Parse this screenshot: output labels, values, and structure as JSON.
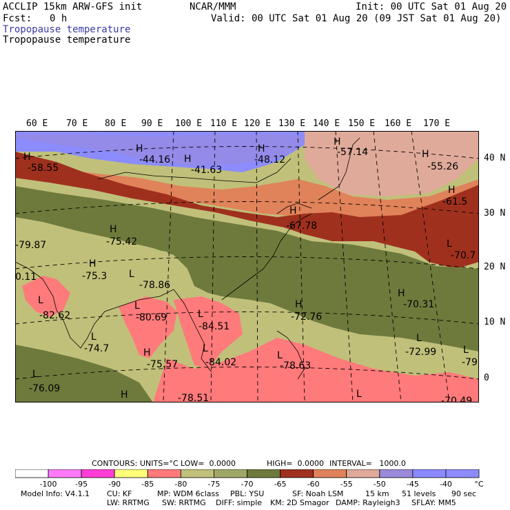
{
  "header": {
    "model": "ACCLIP 15km ARW-GFS init",
    "org": "NCAR/MMM",
    "init": "Init: 00 UTC Sat 01 Aug 20",
    "fcst_label": "Fcst:",
    "fcst_value": "0 h",
    "valid": "Valid: 00 UTC Sat 01 Aug 20 (09 JST Sat 01 Aug 20)",
    "field_title_blue": "Tropopause temperature",
    "field_title_black": "Tropopause temperature"
  },
  "axes": {
    "lon_labels": [
      "60 E",
      "70 E",
      "80 E",
      "90 E",
      "100 E",
      "110 E",
      "120 E",
      "130 E",
      "140 E",
      "150 E",
      "160 E",
      "170 E"
    ],
    "lat_labels": [
      "40 N",
      "30 N",
      "20 N",
      "10 N",
      "0"
    ]
  },
  "map_labels": [
    {
      "hl": "H",
      "val": "-58.55"
    },
    {
      "hl": "H",
      "val": "-44.16"
    },
    {
      "hl": "H",
      "val": "-41.63"
    },
    {
      "hl": "H",
      "val": "-48.12"
    },
    {
      "hl": "H",
      "val": "-57.14"
    },
    {
      "hl": "H",
      "val": "-55.26"
    },
    {
      "hl": "H",
      "val": "-61.5"
    },
    {
      "hl": "H",
      "val": "-67.78"
    },
    {
      "hl": "H",
      "val": "-75.42"
    },
    {
      "hl": "H",
      "val": "-75.3"
    },
    {
      "hl": "L",
      "val": "-78.86"
    },
    {
      "hl": "L",
      "val": "-70.7"
    },
    {
      "hl": "H",
      "val": "-70.31"
    },
    {
      "hl": "H",
      "val": "-72.76"
    },
    {
      "hl": "L",
      "val": "-82.62"
    },
    {
      "hl": "L",
      "val": "-80.69"
    },
    {
      "hl": "L",
      "val": "-84.51"
    },
    {
      "hl": "L",
      "val": "-74.7"
    },
    {
      "hl": "H",
      "val": "-75.57"
    },
    {
      "hl": "L",
      "val": "-84.02"
    },
    {
      "hl": "L",
      "val": "-78.63"
    },
    {
      "hl": "L",
      "val": "-72.99"
    },
    {
      "hl": "L",
      "val": "-79"
    },
    {
      "hl": "L",
      "val": "-76.09"
    },
    {
      "hl": "H",
      "val": "-78.51"
    },
    {
      "hl": "L",
      "val": "-70.49"
    },
    {
      "hl": "",
      "val": "-79.87"
    },
    {
      "hl": "",
      "val": "0.11"
    }
  ],
  "contours_info": {
    "contours": "CONTOURS:",
    "units": "UNITS=°C",
    "low": "LOW=  0.0000",
    "high": "HIGH=  0.0000",
    "interval": "INTERVAL=   1000.0"
  },
  "colorbar": {
    "colors": [
      "#ffffff",
      "#ff7aff",
      "#ff3dd6",
      "#ffff7a",
      "#ff7a7a",
      "#c0c07a",
      "#a0a868",
      "#6e7a3c",
      "#a0301e",
      "#e0825a",
      "#e0aa9a",
      "#9a88d8",
      "#8a8aff",
      "#8c8cff",
      "#7a7aff"
    ],
    "labels": [
      "-100",
      "-95",
      "-90",
      "-85",
      "-80",
      "-75",
      "-70",
      "-65",
      "-60",
      "-55",
      "-50",
      "-45",
      "-40",
      "°C"
    ]
  },
  "footer": {
    "line1": [
      "Model Info: V4.1.1",
      "CU: KF",
      "MP: WDM 6class",
      "PBL: YSU",
      "SF: Noah LSM",
      "15 km",
      "51 levels",
      "90 sec"
    ],
    "line2": [
      "LW: RRTMG",
      "SW: RRTMG",
      "DIFF: simple",
      "KM: 2D Smagor",
      "DAMP: Rayleigh3",
      "SFLAY: MM5"
    ]
  },
  "legend_colors": {
    "bluish": "#8c8cff",
    "lavender": "#9a88d8",
    "pinkish": "#e0aa9a",
    "orange": "#e0825a",
    "darkred": "#a0301e",
    "olive_dark": "#6e7a3c",
    "olive_light": "#c0c07a",
    "salmon": "#ff7a7a"
  }
}
